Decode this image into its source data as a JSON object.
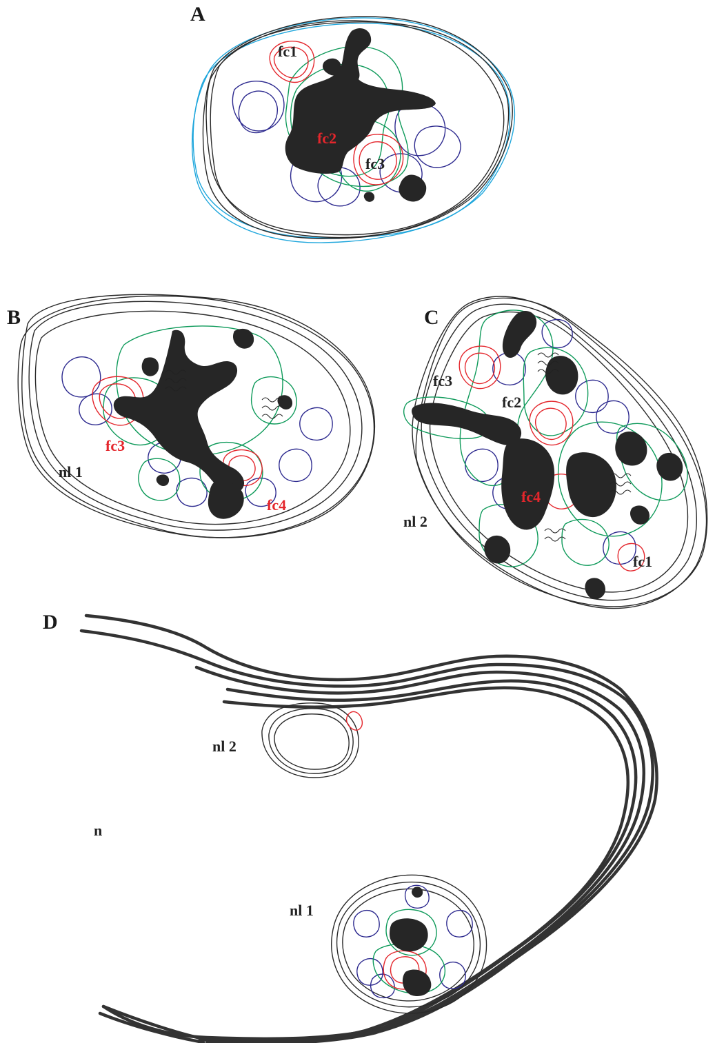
{
  "panels": {
    "A": {
      "letter": "A",
      "labels": {
        "fc1": "fc1",
        "fc2": "fc2",
        "fc3": "fc3"
      }
    },
    "B": {
      "letter": "B",
      "labels": {
        "fc3": "fc3",
        "fc4": "fc4",
        "nl": "nl 1"
      }
    },
    "C": {
      "letter": "C",
      "labels": {
        "fc1": "fc1",
        "fc2": "fc2",
        "fc3": "fc3",
        "fc4": "fc4",
        "nl": "nl 2"
      }
    },
    "D": {
      "letter": "D",
      "labels": {
        "nl1": "nl 1",
        "nl2": "nl 2",
        "n": "n"
      }
    }
  },
  "colors": {
    "outer_contour": "#2a2a2a",
    "nucleolus_outline": "#1ea6dc",
    "dense_component": "#0e9a5a",
    "fibrillar_center_blue": "#2d2a8f",
    "fibrillar_center_red": "#e4262c",
    "chromatin_fill": "#262626"
  }
}
